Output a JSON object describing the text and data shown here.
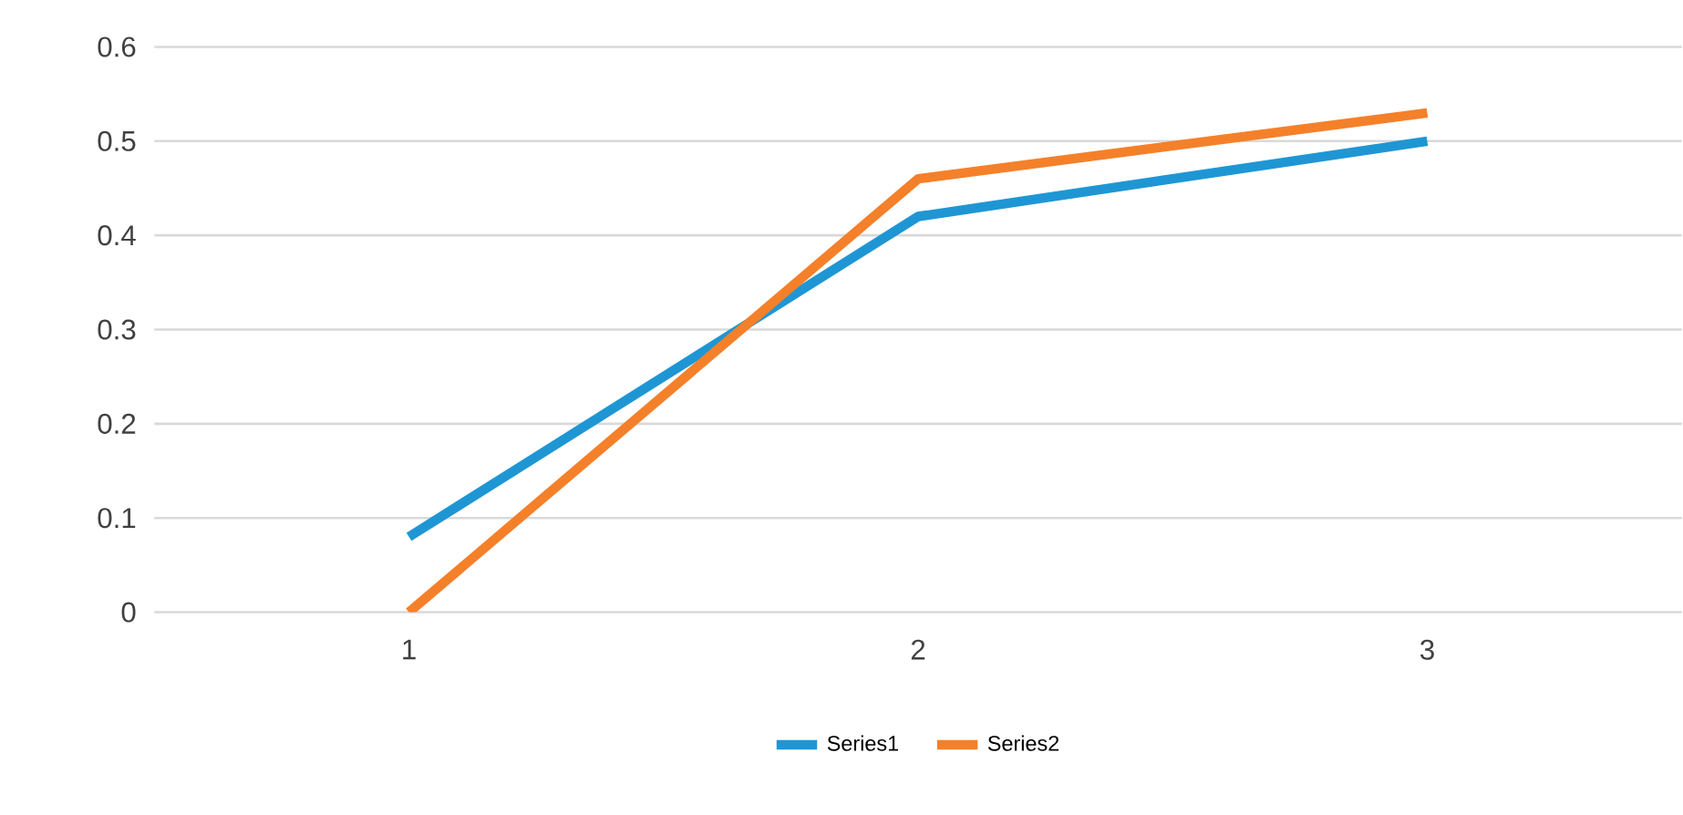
{
  "chart_data": {
    "type": "line",
    "categories": [
      "1",
      "2",
      "3"
    ],
    "series": [
      {
        "name": "Series1",
        "color": "#1f96d4",
        "values": [
          0.08,
          0.42,
          0.5
        ]
      },
      {
        "name": "Series2",
        "color": "#f5802a",
        "values": [
          0.0,
          0.46,
          0.53
        ]
      }
    ],
    "ylim": [
      0,
      0.6
    ],
    "yticks": [
      0,
      0.1,
      0.2,
      0.3,
      0.4,
      0.5,
      0.6
    ],
    "grid": "y",
    "legend": "bottom",
    "marker": "none",
    "line_style": "solid"
  }
}
